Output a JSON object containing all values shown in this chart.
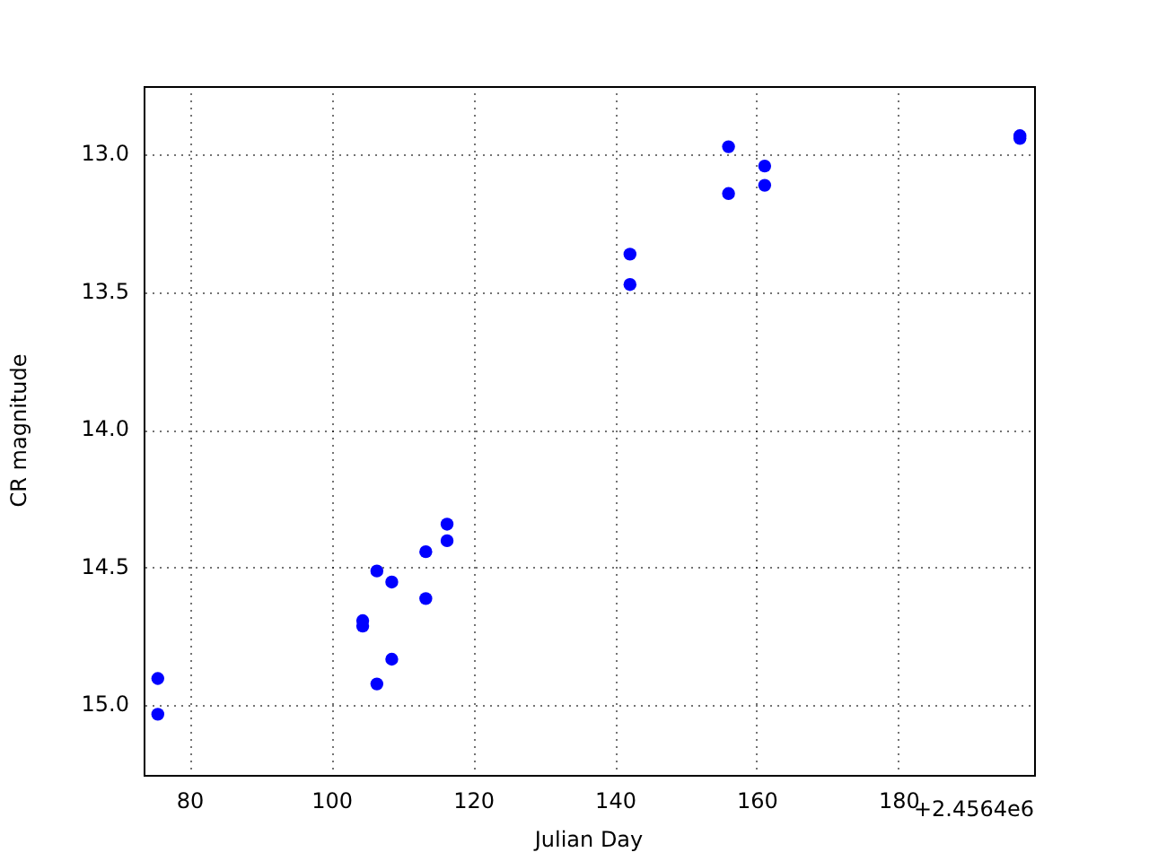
{
  "chart_data": {
    "type": "scatter",
    "xlabel": "Julian Day",
    "ylabel": "CR magnitude",
    "annotations": [
      "+2.4564e6"
    ],
    "x": [
      75.4,
      75.4,
      104.3,
      104.3,
      106.3,
      106.3,
      108.4,
      108.4,
      113.2,
      113.2,
      116.2,
      116.2,
      142.0,
      142.0,
      155.9,
      155.9,
      161.0,
      161.0,
      197.0,
      197.0
    ],
    "values": [
      14.9,
      15.03,
      14.69,
      14.71,
      14.51,
      14.92,
      14.55,
      14.83,
      14.44,
      14.61,
      14.34,
      14.4,
      13.36,
      13.47,
      12.97,
      13.14,
      13.04,
      13.11,
      12.93,
      12.94
    ],
    "color": "#0000ff",
    "marker": "circle",
    "grid": true,
    "xlim": [
      73.4,
      199
    ],
    "xticks": [
      80,
      100,
      120,
      140,
      160,
      180
    ],
    "ylim": [
      15.25,
      12.75
    ],
    "yticks": [
      {
        "value": 13,
        "label": "13.0"
      },
      {
        "value": 13.5,
        "label": "13.5"
      },
      {
        "value": 14,
        "label": "14.0"
      },
      {
        "value": 14.5,
        "label": "14.5"
      },
      {
        "value": 15,
        "label": "15.0"
      }
    ]
  }
}
